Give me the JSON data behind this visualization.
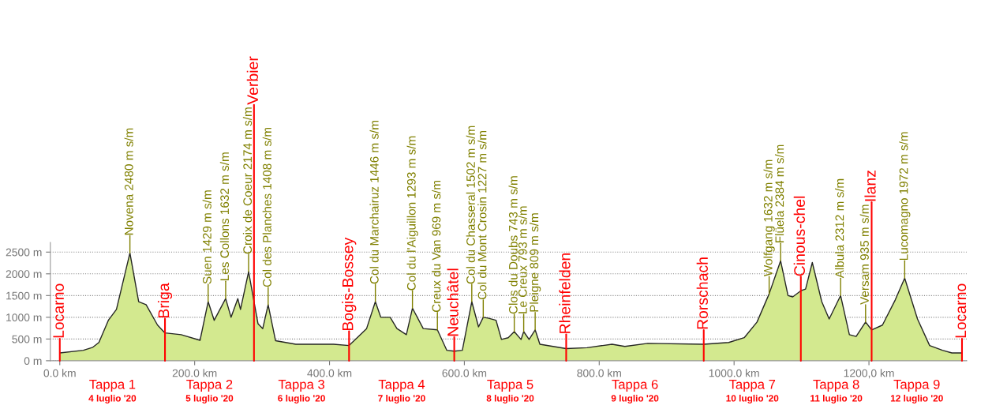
{
  "chart_data": {
    "type": "area",
    "x": [
      0,
      35,
      49,
      58,
      72,
      84,
      104,
      117,
      128,
      145,
      156,
      180,
      208,
      220,
      229,
      246,
      254,
      264,
      268,
      280,
      294,
      301,
      309,
      320,
      350,
      406,
      429,
      441,
      455,
      468,
      476,
      490,
      500,
      514,
      523,
      539,
      560,
      574,
      585,
      597,
      611,
      621,
      628,
      635,
      647,
      655,
      665,
      674,
      684,
      688,
      696,
      705,
      712,
      751,
      782,
      819,
      838,
      872,
      955,
      992,
      1015,
      1034,
      1052,
      1069,
      1080,
      1087,
      1099,
      1106,
      1116,
      1130,
      1141,
      1158,
      1171,
      1181,
      1195,
      1204,
      1220,
      1239,
      1253,
      1272,
      1290,
      1309,
      1323,
      1338
    ],
    "series": [
      {
        "color": "#d3e98f",
        "values": [
          180,
          240,
          310,
          420,
          930,
          1180,
          2480,
          1360,
          1290,
          820,
          640,
          600,
          470,
          1360,
          930,
          1430,
          1000,
          1430,
          1180,
          2050,
          850,
          740,
          1290,
          460,
          380,
          380,
          350,
          530,
          740,
          1360,
          1000,
          1000,
          740,
          600,
          1210,
          740,
          710,
          240,
          220,
          240,
          1360,
          780,
          1000,
          980,
          930,
          490,
          530,
          670,
          490,
          670,
          490,
          710,
          380,
          280,
          300,
          380,
          330,
          400,
          380,
          420,
          530,
          890,
          1540,
          2300,
          1500,
          1470,
          1610,
          1650,
          2260,
          1360,
          960,
          1500,
          600,
          560,
          890,
          710,
          820,
          1400,
          1900,
          960,
          350,
          240,
          180,
          180
        ]
      }
    ],
    "xlim": [
      -14,
      1345
    ],
    "ylim": [
      0,
      2720
    ],
    "xticks": [
      {
        "value": 0,
        "label": "0.0 km"
      },
      {
        "value": 200,
        "label": "200.0 km"
      },
      {
        "value": 400,
        "label": "400.0 km"
      },
      {
        "value": 600,
        "label": "600.0 km"
      },
      {
        "value": 800,
        "label": "800.0 km"
      },
      {
        "value": 1000,
        "label": "1000.0 km"
      },
      {
        "value": 1200,
        "label": "1200,0 km"
      }
    ],
    "yticks": [
      {
        "value": 0,
        "label": "0 m"
      },
      {
        "value": 500,
        "label": "500 m"
      },
      {
        "value": 1000,
        "label": "1000 m"
      },
      {
        "value": 1500,
        "label": "1500 m"
      },
      {
        "value": 2000,
        "label": "2000 m"
      },
      {
        "value": 2500,
        "label": "2500 m"
      }
    ],
    "grid": "y",
    "ref_lines": [
      {
        "axis": "x",
        "value": 0,
        "label": "Locarno",
        "color": "#ff0000"
      },
      {
        "axis": "x",
        "value": 156,
        "label": "Briga",
        "color": "#ff0000"
      },
      {
        "axis": "x",
        "value": 288,
        "label": "Verbier",
        "color": "#ff0000"
      },
      {
        "axis": "x",
        "value": 429,
        "label": "Bogis-Bossey",
        "color": "#ff0000"
      },
      {
        "axis": "x",
        "value": 585,
        "label": "Neuchâtel",
        "color": "#ff0000"
      },
      {
        "axis": "x",
        "value": 751,
        "label": "Rheinfelden",
        "color": "#ff0000"
      },
      {
        "axis": "x",
        "value": 955,
        "label": "Rorschach",
        "color": "#ff0000"
      },
      {
        "axis": "x",
        "value": 1099,
        "label": "Cinous-chel",
        "color": "#ff0000"
      },
      {
        "axis": "x",
        "value": 1204,
        "label": "Ilanz",
        "color": "#ff0000"
      },
      {
        "axis": "x",
        "value": 1338,
        "label": "Locarno",
        "color": "#ff0000"
      }
    ],
    "annotations": [
      {
        "text": "Novena 2480 m s/m",
        "x": 104,
        "y": 2480
      },
      {
        "text": "Suen 1429 m s/m",
        "x": 220,
        "y": 1360
      },
      {
        "text": "Les Collons 1632 m s/m",
        "x": 246,
        "y": 1430
      },
      {
        "text": "Croix de Coeur 2174 m s/m",
        "x": 280,
        "y": 2050
      },
      {
        "text": "Col des Planches 1408 m s/m",
        "x": 309,
        "y": 1290
      },
      {
        "text": "Col du Marchairuz 1446 m s/m",
        "x": 468,
        "y": 1360
      },
      {
        "text": "Col du l'Aiguillon 1293 m s/m",
        "x": 523,
        "y": 1210
      },
      {
        "text": "Creux du Van 969 m s/m",
        "x": 560,
        "y": 710
      },
      {
        "text": "Col du Chasseral 1502 m s/m",
        "x": 611,
        "y": 1360
      },
      {
        "text": "Col du Mont Crosin 1227 m s/m",
        "x": 628,
        "y": 1000
      },
      {
        "text": "Clos du Doubs 743 m s/m",
        "x": 674,
        "y": 670
      },
      {
        "text": "Le Creux 793 m s/m",
        "x": 688,
        "y": 670
      },
      {
        "text": "Pleigne 809 m s/m",
        "x": 705,
        "y": 710
      },
      {
        "text": "Wolfgang 1632 m s/m",
        "x": 1052,
        "y": 1540
      },
      {
        "text": "Flüela 2384 m s/m",
        "x": 1069,
        "y": 2300
      },
      {
        "text": "Albula 2312 m s/m",
        "x": 1158,
        "y": 1500
      },
      {
        "text": "Versam 935 m s/m",
        "x": 1195,
        "y": 890
      },
      {
        "text": "Lucomagno 1972 m s/m",
        "x": 1253,
        "y": 1900
      },
      "Tappa 1",
      "4 luglio '20",
      "Tappa 2",
      "5 luglio '20",
      "Tappa 3",
      "6 luglio '20",
      "Tappa 4",
      "7 luglio '20",
      "Tappa 5",
      "8 luglio '20",
      "Tappa 6",
      "9 luglio '20",
      "Tappa 7",
      "10 luglio '20",
      "Tappa 8",
      "11 luglio '20",
      "Tappa 9",
      "12 luglio '20"
    ]
  }
}
